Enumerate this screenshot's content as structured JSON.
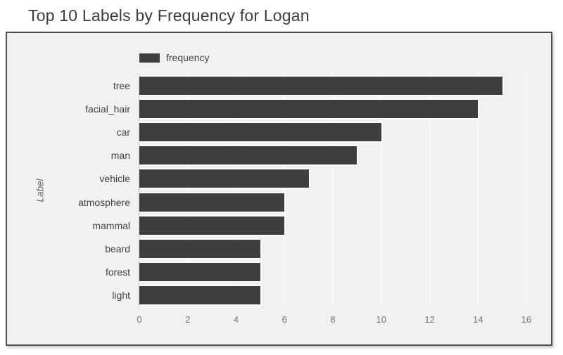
{
  "page": {
    "title": "Top 10 Labels by Frequency for Logan"
  },
  "chart_data": {
    "type": "bar",
    "orientation": "horizontal",
    "title": "Top 10 Labels by Frequency for Logan",
    "xlabel": "",
    "ylabel": "Label",
    "legend_entries": [
      "frequency"
    ],
    "legend_position": "top",
    "categories": [
      "tree",
      "facial_hair",
      "car",
      "man",
      "vehicle",
      "atmosphere",
      "mammal",
      "beard",
      "forest",
      "light"
    ],
    "values": [
      15,
      14,
      10,
      9,
      7,
      6,
      6,
      5,
      5,
      5
    ],
    "xlim": [
      0,
      16
    ],
    "xticks": [
      0,
      2,
      4,
      6,
      8,
      10,
      12,
      14,
      16
    ],
    "grid": true
  },
  "colors": {
    "page_bg": "#ffffff",
    "panel_bg": "#f1f1f1",
    "panel_border": "#4d4d4d",
    "bar": "#3f3f3f",
    "bar_stroke": "#fbfbfb",
    "gridline": "#fafafa",
    "axis_line": "#c9c9c9",
    "title_text": "#3c3c3c",
    "label_text": "#424242",
    "tick_text": "#757575",
    "axis_title_text": "#666666"
  }
}
